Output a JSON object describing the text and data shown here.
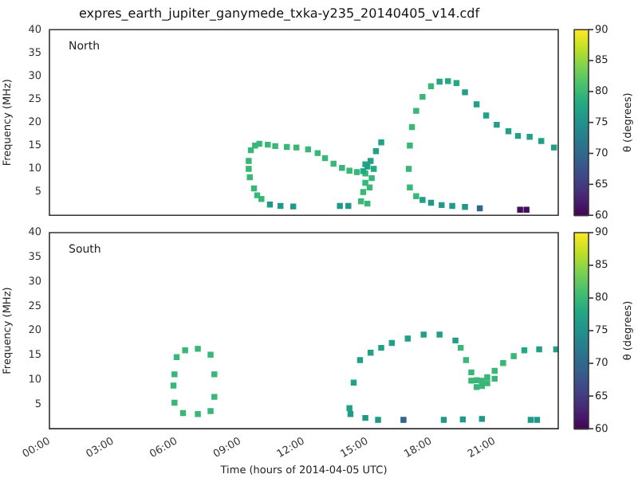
{
  "chart_data": [
    {
      "type": "scatter",
      "title": "expres_earth_jupiter_ganymede_txka-y235_20140405_v14.cdf",
      "ylabel": "Frequency (MHz)",
      "clabel": "θ (degrees)",
      "annotations": [
        "North"
      ],
      "marker": "square",
      "tick_labels": "y",
      "xlim": [
        0,
        24
      ],
      "ylim": [
        0,
        40
      ],
      "xticks": [
        {
          "value": 0,
          "label": null
        },
        {
          "value": 3,
          "label": null
        },
        {
          "value": 6,
          "label": null
        },
        {
          "value": 9,
          "label": null
        },
        {
          "value": 12,
          "label": null
        },
        {
          "value": 15,
          "label": null
        },
        {
          "value": 18,
          "label": null
        },
        {
          "value": 21,
          "label": null
        }
      ],
      "yticks": [
        5,
        10,
        15,
        20,
        25,
        30,
        35,
        40
      ],
      "clim": [
        60,
        90
      ],
      "cticks": [
        60,
        65,
        70,
        75,
        80,
        85,
        90
      ],
      "series": [
        {
          "x": [
            10.0,
            9.8,
            9.65,
            9.45,
            9.4,
            9.4,
            9.5,
            9.7,
            9.9,
            10.3,
            10.65,
            11.2,
            11.65,
            12.2,
            12.65,
            13.0,
            13.4,
            13.8,
            14.15,
            14.5,
            14.8,
            15.0,
            15.15,
            15.4,
            15.65
          ],
          "values": [
            3.5,
            4.3,
            5.8,
            8.2,
            10,
            11.7,
            14,
            15,
            15.4,
            15.2,
            14.9,
            14.7,
            14.6,
            14.2,
            13.4,
            12.3,
            11.1,
            10.2,
            9.6,
            9.3,
            9.5,
            10.5,
            11.7,
            13.8,
            15.7
          ],
          "cvalues": [
            80,
            80,
            80,
            80,
            80,
            80,
            80,
            80,
            80,
            80,
            80,
            80,
            80,
            80,
            80,
            80,
            80,
            80,
            80,
            80,
            78,
            77,
            77,
            77,
            77
          ],
          "colors": [
            "#39b777",
            "#39b777",
            "#39b777",
            "#39b777",
            "#39b777",
            "#39b777",
            "#39b777",
            "#39b777",
            "#39b777",
            "#39b777",
            "#39b777",
            "#39b777",
            "#39b777",
            "#39b777",
            "#39b777",
            "#39b777",
            "#39b777",
            "#39b777",
            "#39b777",
            "#39b777",
            "#22a884",
            "#22a087",
            "#22a087",
            "#22a087",
            "#22a087"
          ]
        },
        {
          "x": [
            14.7,
            14.8,
            14.9,
            14.9,
            14.9,
            15.0,
            15.1,
            15.2,
            15.3
          ],
          "values": [
            3,
            5,
            7,
            9,
            11,
            2.5,
            6,
            8,
            10
          ],
          "cvalues": [
            80,
            80,
            80,
            80,
            78,
            80,
            80,
            80,
            78
          ],
          "colors": [
            "#39b777",
            "#39b777",
            "#39b777",
            "#39b777",
            "#22a884",
            "#39b777",
            "#39b777",
            "#39b777",
            "#22a884"
          ]
        },
        {
          "x": [
            10.4,
            10.9,
            11.5,
            13.7,
            14.1
          ],
          "values": [
            2.3,
            2.0,
            1.9,
            2.0,
            2.0
          ],
          "cvalues": [
            76,
            76,
            76,
            76,
            76
          ],
          "colors": [
            "#219989",
            "#219989",
            "#219989",
            "#219989",
            "#219989"
          ]
        },
        {
          "x": [
            17.3,
            17.0,
            16.95,
            17.0,
            17.1,
            17.3,
            17.6,
            18.0,
            18.4,
            18.8,
            19.2,
            19.6,
            20.15,
            20.6,
            21.1,
            21.65,
            22.1,
            22.65,
            23.2,
            23.8
          ],
          "values": [
            4.1,
            6,
            10,
            15,
            19,
            22.5,
            25.5,
            27.8,
            28.8,
            28.9,
            28.5,
            26.5,
            23.9,
            21.5,
            19.5,
            18.1,
            17.1,
            16.9,
            16.0,
            14.6
          ],
          "cvalues": [
            80,
            80,
            80,
            80,
            80,
            80,
            80,
            80,
            78,
            78,
            78,
            77,
            77,
            77,
            77,
            77,
            77,
            77,
            77,
            77
          ],
          "colors": [
            "#39b777",
            "#39b777",
            "#39b777",
            "#39b777",
            "#39b777",
            "#39b777",
            "#39b777",
            "#39b777",
            "#22a884",
            "#22a884",
            "#22a884",
            "#22a087",
            "#22a087",
            "#22a087",
            "#22a087",
            "#22a087",
            "#22a087",
            "#22a087",
            "#22a087",
            "#22a087"
          ]
        },
        {
          "x": [
            17.6,
            18.0,
            18.5,
            19.0,
            19.6,
            20.3,
            22.2,
            22.5
          ],
          "values": [
            3.3,
            2.7,
            2.2,
            2.0,
            1.8,
            1.5,
            1.2,
            1.2
          ],
          "cvalues": [
            77,
            76,
            76,
            76,
            76,
            70,
            61,
            61
          ],
          "colors": [
            "#22a087",
            "#219989",
            "#219989",
            "#219989",
            "#219989",
            "#31678d",
            "#450d5f",
            "#450d5f"
          ]
        }
      ]
    },
    {
      "type": "scatter",
      "xlabel": "Time (hours of 2014-04-05 UTC)",
      "ylabel": "Frequency (MHz)",
      "clabel": "θ (degrees)",
      "annotations": [
        "South"
      ],
      "marker": "square",
      "xlim": [
        0,
        24
      ],
      "ylim": [
        0,
        40
      ],
      "xticks": [
        {
          "value": 0,
          "label": "00:00"
        },
        {
          "value": 3,
          "label": "03:00"
        },
        {
          "value": 6,
          "label": "06:00"
        },
        {
          "value": 9,
          "label": "09:00"
        },
        {
          "value": 12,
          "label": "12:00"
        },
        {
          "value": 15,
          "label": "15:00"
        },
        {
          "value": 18,
          "label": "18:00"
        },
        {
          "value": 21,
          "label": "21:00"
        }
      ],
      "yticks": [
        5,
        10,
        15,
        20,
        25,
        30,
        35,
        40
      ],
      "clim": [
        60,
        90
      ],
      "cticks": [
        60,
        65,
        70,
        75,
        80,
        85,
        90
      ],
      "series": [
        {
          "x": [
            5.9,
            6.0,
            6.4,
            7.0,
            7.6,
            7.78,
            7.78,
            7.6,
            7.0,
            6.3,
            5.9,
            5.85
          ],
          "values": [
            11.1,
            14.6,
            16.0,
            16.3,
            15.1,
            11.1,
            6.5,
            3.6,
            3.0,
            3.2,
            5.3,
            8.8
          ],
          "cvalues": [
            80,
            80,
            80,
            80,
            80,
            80,
            80,
            80,
            80,
            80,
            80,
            80
          ],
          "colors": [
            "#39b777",
            "#39b777",
            "#39b777",
            "#39b777",
            "#39b777",
            "#39b777",
            "#39b777",
            "#39b777",
            "#39b777",
            "#39b777",
            "#39b777",
            "#39b777"
          ]
        },
        {
          "x": [
            14.15,
            14.35,
            14.65,
            15.15,
            15.65,
            16.15,
            16.9,
            17.65,
            18.4,
            19.15,
            19.4,
            19.65,
            19.9,
            20.15,
            20.4,
            20.65,
            21.0,
            21.4,
            21.9,
            22.4,
            23.1,
            23.9
          ],
          "values": [
            4.2,
            9.4,
            14,
            15.5,
            16.5,
            17.5,
            18.4,
            19.2,
            19.2,
            18,
            16.5,
            14,
            11.5,
            9.9,
            9.8,
            10.5,
            11.8,
            13.4,
            14.8,
            16.0,
            16.2,
            16.2
          ],
          "cvalues": [
            77,
            77,
            77,
            77,
            77,
            77,
            77,
            77,
            77,
            77,
            80,
            80,
            80,
            80,
            80,
            80,
            80,
            80,
            80,
            78,
            77,
            77
          ],
          "colors": [
            "#22a087",
            "#22a087",
            "#22a087",
            "#22a087",
            "#22a087",
            "#22a087",
            "#22a087",
            "#22a087",
            "#22a087",
            "#22a087",
            "#39b777",
            "#39b777",
            "#39b777",
            "#39b777",
            "#39b777",
            "#39b777",
            "#39b777",
            "#39b777",
            "#39b777",
            "#22a884",
            "#22a087",
            "#22a087"
          ]
        },
        {
          "x": [
            19.9,
            20.15,
            20.4,
            20.65,
            21.0
          ],
          "values": [
            9.8,
            8.5,
            8.7,
            9.3,
            10.2
          ],
          "cvalues": [
            80,
            80,
            80,
            80,
            80
          ],
          "colors": [
            "#39b777",
            "#39b777",
            "#39b777",
            "#39b777",
            "#39b777"
          ]
        },
        {
          "x": [
            14.2,
            14.9,
            15.5,
            16.7,
            18.6,
            19.5,
            20.4,
            22.7,
            23.0
          ],
          "values": [
            3.0,
            2.2,
            1.8,
            1.8,
            1.8,
            1.9,
            2.0,
            1.8,
            1.8
          ],
          "cvalues": [
            76,
            76,
            76,
            70,
            76,
            76,
            76,
            76,
            76
          ],
          "colors": [
            "#219989",
            "#219989",
            "#219989",
            "#31678d",
            "#219989",
            "#219989",
            "#219989",
            "#219989",
            "#219989"
          ]
        }
      ]
    }
  ]
}
